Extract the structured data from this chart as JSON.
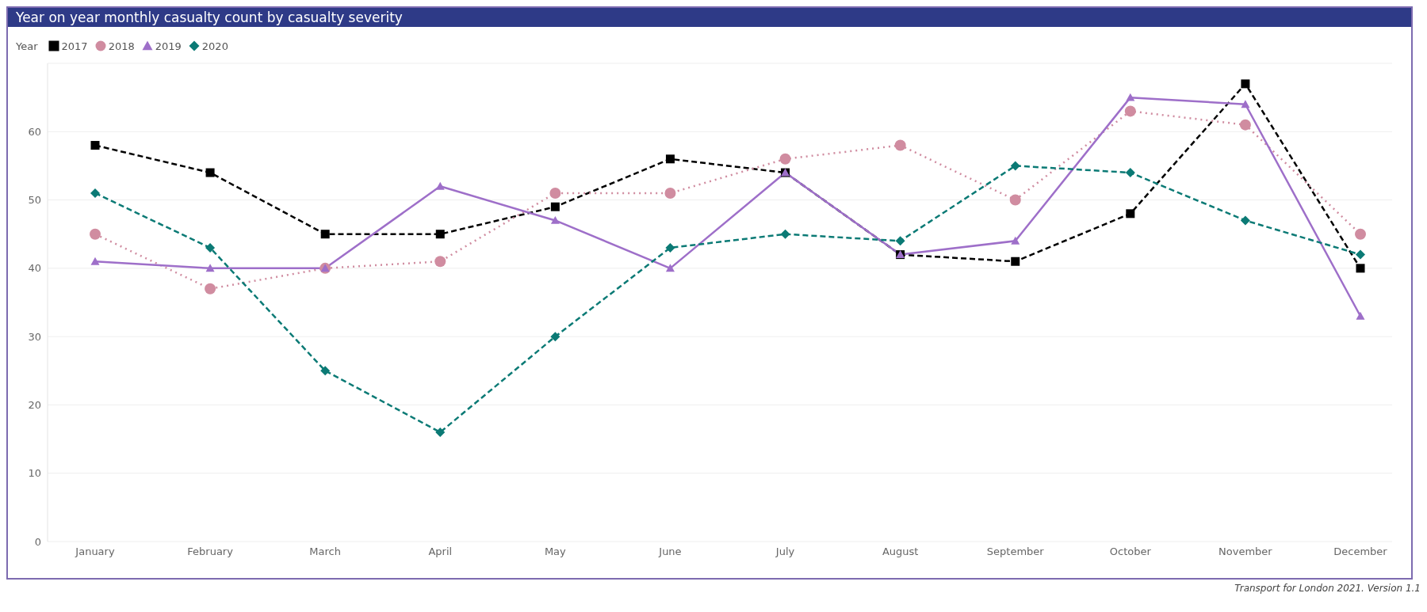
{
  "chart_data": {
    "type": "line",
    "title": "Year on year monthly casualty count by casualty severity",
    "legend_title": "Year",
    "legend": "top left",
    "grid": "y",
    "categories": [
      "January",
      "February",
      "March",
      "April",
      "May",
      "June",
      "July",
      "August",
      "September",
      "October",
      "November",
      "December"
    ],
    "ylim": [
      0,
      70
    ],
    "yticks": [
      0,
      10,
      20,
      30,
      40,
      50,
      60
    ],
    "series": [
      {
        "name": "2017",
        "color": "#000000",
        "marker": "square",
        "line_style": "dashed",
        "values": [
          58,
          54,
          45,
          45,
          49,
          56,
          54,
          42,
          41,
          48,
          67,
          40
        ]
      },
      {
        "name": "2018",
        "color": "#d08ca0",
        "marker": "circle",
        "line_style": "dotted",
        "values": [
          45,
          37,
          40,
          41,
          51,
          51,
          56,
          58,
          50,
          63,
          61,
          45
        ]
      },
      {
        "name": "2019",
        "color": "#9e6fc9",
        "marker": "triangle",
        "line_style": "solid",
        "values": [
          41,
          40,
          40,
          52,
          47,
          40,
          54,
          42,
          44,
          65,
          64,
          33
        ]
      },
      {
        "name": "2020",
        "color": "#0b7a75",
        "marker": "diamond",
        "line_style": "dashed",
        "values": [
          51,
          43,
          25,
          16,
          30,
          43,
          45,
          44,
          55,
          54,
          47,
          42
        ]
      }
    ],
    "annotations": [
      "Transport for London 2021. Version 1.1"
    ]
  }
}
